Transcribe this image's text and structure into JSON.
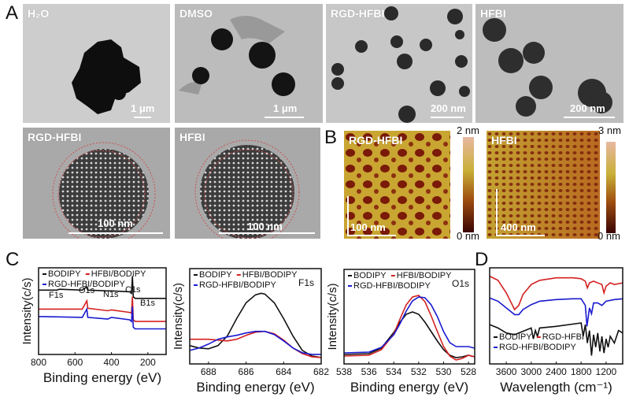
{
  "figure": {
    "panels": {
      "A": {
        "letter": "A",
        "tem_images": [
          {
            "label": "H₂O",
            "scale": "1 μm"
          },
          {
            "label": "DMSO",
            "scale": "1 μm"
          },
          {
            "label": "RGD-HFBI",
            "scale": "200 nm"
          },
          {
            "label": "HFBI",
            "scale": "200 nm"
          },
          {
            "label": "RGD-HFBI",
            "scale": "100 nm"
          },
          {
            "label": "HFBI",
            "scale": "100 nm"
          }
        ]
      },
      "B": {
        "letter": "B",
        "afm_images": [
          {
            "label": "RGD-HFBI",
            "scale": "100 nm",
            "colorbar_max": "2 nm",
            "colorbar_min": "0 nm"
          },
          {
            "label": "HFBI",
            "scale": "400 nm",
            "colorbar_max": "3 nm",
            "colorbar_min": "0 nm"
          }
        ]
      },
      "C": {
        "letter": "C"
      },
      "D": {
        "letter": "D"
      }
    }
  },
  "chart_data": [
    {
      "id": "C-survey",
      "type": "line",
      "title": "",
      "xlabel": "Binding energy (eV)",
      "ylabel": "Intensity(c/s)",
      "xlim": [
        800,
        100
      ],
      "xticks": [
        800,
        600,
        400,
        200
      ],
      "legend": [
        "BODIPY",
        "HFBI/BODIPY",
        "RGD-HFBI/BODIPY"
      ],
      "annotations": [
        "F1s",
        "O1s",
        "N1s",
        "C1s",
        "B1s"
      ],
      "series": [
        {
          "name": "BODIPY",
          "color": "#111111",
          "x": [
            800,
            700,
            685,
            560,
            535,
            530,
            420,
            400,
            300,
            290,
            285,
            280,
            270,
            200,
            100
          ],
          "y": [
            0.78,
            0.78,
            0.79,
            0.78,
            0.82,
            0.78,
            0.77,
            0.77,
            0.76,
            0.74,
            0.95,
            0.7,
            0.68,
            0.68,
            0.68
          ]
        },
        {
          "name": "HFBI/BODIPY",
          "color": "#d42020",
          "x": [
            800,
            560,
            535,
            530,
            420,
            400,
            300,
            290,
            285,
            280,
            270,
            200,
            100
          ],
          "y": [
            0.55,
            0.55,
            0.65,
            0.56,
            0.53,
            0.54,
            0.51,
            0.5,
            0.7,
            0.42,
            0.4,
            0.4,
            0.4
          ]
        },
        {
          "name": "RGD-HFBI/BODIPY",
          "color": "#1a1ad0",
          "x": [
            800,
            560,
            535,
            530,
            420,
            400,
            300,
            290,
            285,
            280,
            270,
            200,
            100
          ],
          "y": [
            0.46,
            0.45,
            0.55,
            0.45,
            0.43,
            0.45,
            0.42,
            0.4,
            0.58,
            0.33,
            0.31,
            0.31,
            0.31
          ]
        }
      ]
    },
    {
      "id": "C-F1s",
      "type": "line",
      "title": "F1s",
      "xlabel": "Binding energy (eV)",
      "ylabel": "Intensity(c/s)",
      "xlim": [
        689,
        682
      ],
      "xticks": [
        688,
        686,
        684,
        682
      ],
      "legend": [
        "BODIPY",
        "HFBI/BODIPY",
        "RGD-HFBI/BODIPY"
      ],
      "series": [
        {
          "name": "BODIPY",
          "color": "#111111",
          "x": [
            689,
            688.5,
            688,
            687.5,
            687,
            686.5,
            686,
            685.5,
            685.2,
            685,
            684.5,
            684,
            683.5,
            683,
            682.5,
            682
          ],
          "y": [
            0.18,
            0.15,
            0.14,
            0.18,
            0.3,
            0.52,
            0.72,
            0.82,
            0.84,
            0.83,
            0.72,
            0.52,
            0.3,
            0.12,
            0.05,
            0.03
          ]
        },
        {
          "name": "HFBI/BODIPY",
          "color": "#d42020",
          "x": [
            689,
            688,
            687.5,
            687,
            686.5,
            686,
            685.5,
            685,
            684.5,
            684,
            683.5,
            683,
            682.5,
            682
          ],
          "y": [
            0.26,
            0.26,
            0.25,
            0.24,
            0.26,
            0.31,
            0.35,
            0.36,
            0.33,
            0.25,
            0.15,
            0.08,
            0.04,
            0.03
          ]
        },
        {
          "name": "RGD-HFBI/BODIPY",
          "color": "#1a1ad0",
          "x": [
            689,
            688.5,
            688,
            687.5,
            687,
            686.5,
            686,
            685.5,
            685,
            684.5,
            684,
            683.5,
            683,
            682.5,
            682
          ],
          "y": [
            0.12,
            0.15,
            0.2,
            0.26,
            0.29,
            0.31,
            0.34,
            0.36,
            0.36,
            0.32,
            0.24,
            0.15,
            0.09,
            0.07,
            0.07
          ]
        }
      ]
    },
    {
      "id": "C-O1s",
      "type": "line",
      "title": "O1s",
      "xlabel": "Binding energy (eV)",
      "ylabel": "Intensity(c/s)",
      "xlim": [
        538,
        527.5
      ],
      "xticks": [
        538,
        536,
        534,
        532,
        530,
        528
      ],
      "legend": [
        "BODIPY",
        "HFBI/BODIPY",
        "RGD-HFBI/BODIPY"
      ],
      "series": [
        {
          "name": "BODIPY",
          "color": "#111111",
          "x": [
            538,
            536,
            535,
            534,
            533.5,
            533,
            532.5,
            532,
            531.5,
            531,
            530.5,
            530,
            529.5,
            529,
            528.5,
            528,
            527.5
          ],
          "y": [
            0.07,
            0.08,
            0.15,
            0.35,
            0.48,
            0.58,
            0.61,
            0.58,
            0.48,
            0.36,
            0.24,
            0.13,
            0.06,
            0.03,
            0.04,
            0.06,
            0.04
          ]
        },
        {
          "name": "HFBI/BODIPY",
          "color": "#d42020",
          "x": [
            538,
            536,
            535,
            534,
            533.5,
            533,
            532.5,
            532,
            531.5,
            531,
            530.5,
            530,
            529.5,
            529,
            528.5,
            528,
            527.5
          ],
          "y": [
            0.05,
            0.06,
            0.13,
            0.33,
            0.52,
            0.7,
            0.8,
            0.82,
            0.74,
            0.56,
            0.36,
            0.17,
            0.05,
            0.0,
            0.02,
            0.06,
            0.04
          ]
        },
        {
          "name": "RGD-HFBI/BODIPY",
          "color": "#1a1ad0",
          "x": [
            538,
            536,
            535,
            534,
            533.5,
            533,
            532.5,
            532,
            531.5,
            531,
            530.5,
            530,
            529.5,
            529,
            528.5,
            528,
            527.5
          ],
          "y": [
            0.09,
            0.1,
            0.16,
            0.32,
            0.46,
            0.62,
            0.75,
            0.8,
            0.79,
            0.7,
            0.55,
            0.36,
            0.22,
            0.17,
            0.17,
            0.17,
            0.15
          ]
        }
      ]
    },
    {
      "id": "D-FTIR",
      "type": "line",
      "title": "",
      "xlabel": "Wavelength (cm⁻¹)",
      "ylabel": "",
      "xlim": [
        4000,
        800
      ],
      "xticks": [
        3600,
        3000,
        2400,
        1800,
        1200
      ],
      "legend": [
        "BODIPY",
        "RGD-HFBI",
        "RGD-HFBI/BODIPY"
      ],
      "series": [
        {
          "name": "RGD-HFBI",
          "color": "#d42020",
          "x": [
            4000,
            3800,
            3600,
            3400,
            3300,
            3200,
            3000,
            2800,
            2400,
            2000,
            1800,
            1700,
            1650,
            1600,
            1500,
            1300,
            1250,
            1200,
            1100,
            1000,
            800
          ],
          "y": [
            0.9,
            0.85,
            0.7,
            0.5,
            0.55,
            0.68,
            0.8,
            0.85,
            0.88,
            0.88,
            0.87,
            0.84,
            0.76,
            0.82,
            0.84,
            0.8,
            0.7,
            0.78,
            0.82,
            0.8,
            0.82
          ]
        },
        {
          "name": "RGD-HFBI/BODIPY",
          "color": "#1a1ad0",
          "x": [
            4000,
            3800,
            3600,
            3400,
            3300,
            3200,
            3000,
            2900,
            2800,
            2400,
            2000,
            1800,
            1700,
            1660,
            1600,
            1550,
            1500,
            1400,
            1300,
            1200,
            1000,
            800
          ],
          "y": [
            0.64,
            0.6,
            0.52,
            0.44,
            0.44,
            0.5,
            0.56,
            0.58,
            0.6,
            0.62,
            0.63,
            0.63,
            0.55,
            0.3,
            0.52,
            0.45,
            0.58,
            0.58,
            0.55,
            0.6,
            0.62,
            0.63
          ]
        },
        {
          "name": "BODIPY",
          "color": "#111111",
          "x": [
            4000,
            3800,
            3600,
            3400,
            3200,
            3000,
            2950,
            2900,
            2850,
            2800,
            2400,
            1800,
            1750,
            1700,
            1650,
            1600,
            1550,
            1500,
            1450,
            1400,
            1350,
            1300,
            1250,
            1200,
            1150,
            1100,
            1000,
            900,
            800
          ],
          "y": [
            0.32,
            0.28,
            0.22,
            0.2,
            0.24,
            0.28,
            0.15,
            0.25,
            0.18,
            0.28,
            0.3,
            0.34,
            0.18,
            0.32,
            0.1,
            0.25,
            -0.05,
            0.2,
            0.05,
            0.22,
            0.0,
            0.18,
            -0.02,
            0.15,
            0.05,
            0.18,
            0.1,
            0.25,
            0.22
          ]
        }
      ]
    }
  ]
}
